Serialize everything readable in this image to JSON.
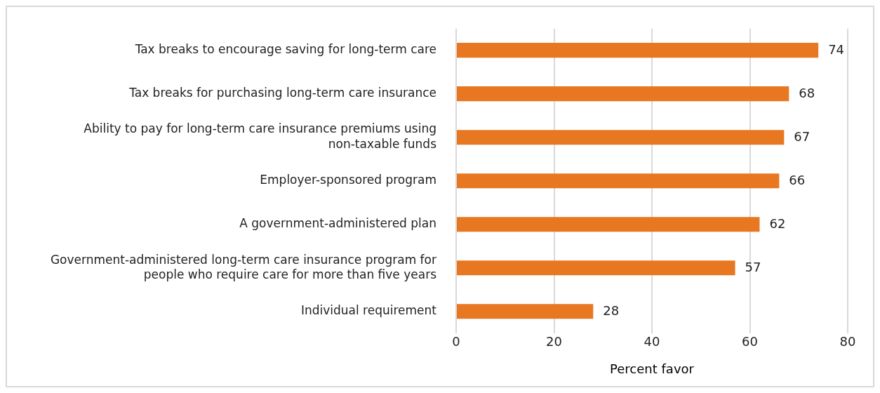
{
  "chart_data": {
    "type": "bar",
    "orientation": "horizontal",
    "xlabel": "Percent favor",
    "categories": [
      "Tax breaks to encourage saving for long-term care",
      "Tax breaks for purchasing long-term care insurance",
      "Ability to pay for long-term care insurance premiums using non-taxable funds",
      "Employer-sponsored program",
      "A government-administered plan",
      "Government-administered long-term care insurance program for people who require care for more than five years",
      "Individual requirement"
    ],
    "values": [
      74,
      68,
      67,
      66,
      62,
      57,
      28
    ],
    "color": "#e87722",
    "xlim": [
      0,
      80
    ],
    "xticks": [
      0,
      20,
      40,
      60,
      80
    ],
    "grid": "x",
    "data_labels": true,
    "legend": false
  }
}
